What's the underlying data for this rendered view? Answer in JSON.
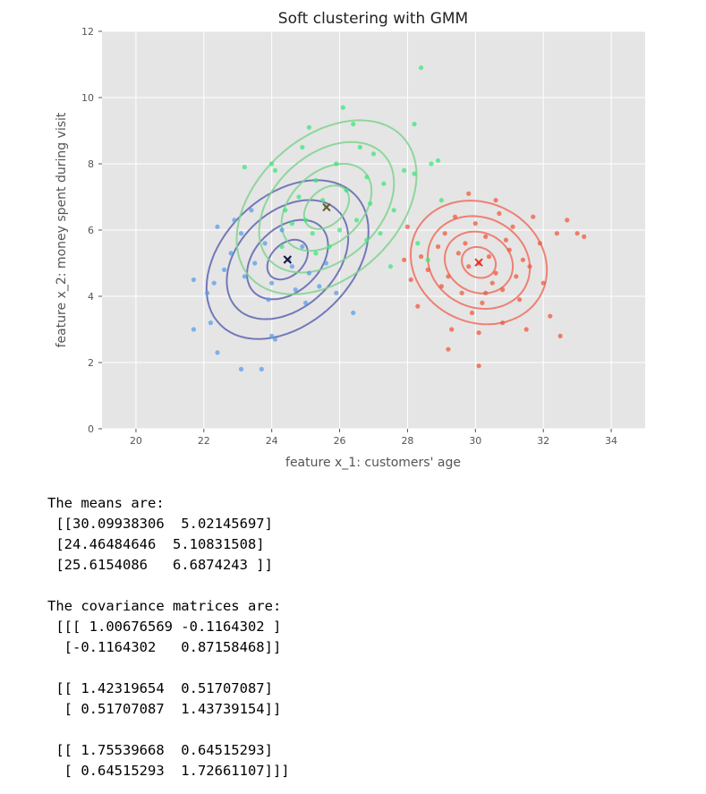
{
  "chart_data": {
    "type": "scatter",
    "title": "Soft clustering with GMM",
    "xlabel": "feature x_1: customers' age",
    "ylabel": "feature x_2: money spent during visit",
    "xlim": [
      19,
      35
    ],
    "ylim": [
      0,
      12
    ],
    "xticks": [
      "20",
      "22",
      "24",
      "26",
      "28",
      "30",
      "32",
      "34"
    ],
    "yticks": [
      "0",
      "2",
      "4",
      "6",
      "8",
      "10",
      "12"
    ],
    "grid": true,
    "components": [
      {
        "color": "#f05a3c",
        "ellipse_color": "#ee6f5f",
        "mean": [
          30.09938306,
          5.02145697
        ],
        "cov": [
          [
            1.00676569,
            -0.1164302
          ],
          [
            -0.1164302,
            0.87158468
          ]
        ],
        "center_marker": "#e8312a"
      },
      {
        "color": "#5a9ee8",
        "ellipse_color": "#5f65b0",
        "mean": [
          24.46484646,
          5.10831508
        ],
        "cov": [
          [
            1.42319654,
            0.51707087
          ],
          [
            0.51707087,
            1.43739154
          ]
        ],
        "center_marker": "#151540"
      },
      {
        "color": "#3de67a",
        "ellipse_color": "#7fd48e",
        "mean": [
          25.6154086,
          6.6874243
        ],
        "cov": [
          [
            1.75539668,
            0.64515293
          ],
          [
            0.64515293,
            1.72661107
          ]
        ],
        "center_marker": "#6a5a30"
      }
    ],
    "series": [
      {
        "points": [
          [
            30.1,
            5.0
          ],
          [
            29.5,
            5.3
          ],
          [
            30.6,
            4.7
          ],
          [
            31.0,
            5.4
          ],
          [
            29.2,
            4.6
          ],
          [
            30.3,
            5.8
          ],
          [
            30.8,
            4.2
          ],
          [
            29.8,
            4.9
          ],
          [
            31.4,
            5.1
          ],
          [
            28.9,
            5.5
          ],
          [
            30.0,
            6.2
          ],
          [
            29.6,
            4.1
          ],
          [
            31.2,
            4.6
          ],
          [
            30.4,
            5.2
          ],
          [
            29.1,
            5.9
          ],
          [
            30.9,
            5.7
          ],
          [
            31.6,
            4.9
          ],
          [
            28.6,
            4.8
          ],
          [
            30.2,
            3.8
          ],
          [
            29.4,
            6.4
          ],
          [
            31.9,
            5.6
          ],
          [
            28.4,
            5.2
          ],
          [
            30.7,
            6.5
          ],
          [
            29.9,
            3.5
          ],
          [
            31.3,
            3.9
          ],
          [
            32.0,
            4.4
          ],
          [
            28.1,
            4.5
          ],
          [
            30.5,
            4.4
          ],
          [
            29.7,
            5.6
          ],
          [
            31.1,
            6.1
          ],
          [
            30.1,
            2.9
          ],
          [
            29.3,
            3.0
          ],
          [
            32.4,
            5.9
          ],
          [
            28.0,
            6.1
          ],
          [
            30.8,
            3.2
          ],
          [
            31.7,
            6.4
          ],
          [
            28.3,
            3.7
          ],
          [
            29.0,
            4.3
          ],
          [
            32.2,
            3.4
          ],
          [
            30.6,
            6.9
          ],
          [
            33.2,
            5.8
          ],
          [
            32.5,
            2.8
          ],
          [
            30.1,
            1.9
          ],
          [
            32.7,
            6.3
          ],
          [
            29.2,
            2.4
          ],
          [
            31.5,
            3.0
          ],
          [
            27.9,
            5.1
          ],
          [
            33.0,
            5.9
          ],
          [
            29.8,
            7.1
          ],
          [
            30.3,
            4.1
          ]
        ]
      },
      {
        "points": [
          [
            24.5,
            5.1
          ],
          [
            23.8,
            5.6
          ],
          [
            25.1,
            4.7
          ],
          [
            24.0,
            4.4
          ],
          [
            23.5,
            5.0
          ],
          [
            24.9,
            5.5
          ],
          [
            25.6,
            5.0
          ],
          [
            23.2,
            4.6
          ],
          [
            24.3,
            6.0
          ],
          [
            22.8,
            5.3
          ],
          [
            25.4,
            4.3
          ],
          [
            23.9,
            3.9
          ],
          [
            24.7,
            4.2
          ],
          [
            22.6,
            4.8
          ],
          [
            23.1,
            5.9
          ],
          [
            22.3,
            4.4
          ],
          [
            21.7,
            4.5
          ],
          [
            22.1,
            4.1
          ],
          [
            21.7,
            3.0
          ],
          [
            22.2,
            3.2
          ],
          [
            22.4,
            2.3
          ],
          [
            23.1,
            1.8
          ],
          [
            23.7,
            1.8
          ],
          [
            24.0,
            2.8
          ],
          [
            24.1,
            2.7
          ],
          [
            22.4,
            6.1
          ],
          [
            22.9,
            6.3
          ],
          [
            23.4,
            6.6
          ],
          [
            25.9,
            4.1
          ],
          [
            26.4,
            3.5
          ],
          [
            25.0,
            3.8
          ],
          [
            24.6,
            4.9
          ]
        ]
      },
      {
        "points": [
          [
            25.6,
            6.7
          ],
          [
            26.2,
            7.2
          ],
          [
            25.0,
            6.3
          ],
          [
            26.8,
            7.6
          ],
          [
            24.8,
            7.0
          ],
          [
            26.5,
            6.3
          ],
          [
            25.9,
            8.0
          ],
          [
            27.3,
            7.4
          ],
          [
            24.4,
            6.6
          ],
          [
            26.0,
            6.0
          ],
          [
            25.3,
            7.5
          ],
          [
            27.0,
            8.3
          ],
          [
            24.1,
            7.8
          ],
          [
            26.9,
            6.8
          ],
          [
            25.2,
            5.9
          ],
          [
            27.6,
            6.6
          ],
          [
            25.7,
            5.5
          ],
          [
            24.9,
            8.5
          ],
          [
            26.4,
            9.2
          ],
          [
            27.9,
            7.8
          ],
          [
            26.1,
            9.7
          ],
          [
            25.1,
            9.1
          ],
          [
            28.2,
            9.2
          ],
          [
            28.4,
            10.9
          ],
          [
            28.9,
            8.1
          ],
          [
            28.7,
            8.0
          ],
          [
            28.2,
            7.7
          ],
          [
            28.6,
            5.1
          ],
          [
            28.3,
            5.6
          ],
          [
            29.0,
            6.9
          ],
          [
            27.5,
            4.9
          ],
          [
            23.2,
            7.9
          ],
          [
            24.0,
            8.0
          ],
          [
            25.3,
            5.3
          ],
          [
            26.8,
            5.7
          ],
          [
            24.6,
            6.2
          ],
          [
            25.5,
            6.9
          ],
          [
            27.2,
            5.9
          ],
          [
            24.3,
            5.5
          ],
          [
            26.6,
            8.5
          ]
        ]
      }
    ]
  },
  "output": {
    "lines": [
      "The means are:",
      " [[30.09938306  5.02145697]",
      " [24.46484646  5.10831508]",
      " [25.6154086   6.6874243 ]]",
      "",
      "The covariance matrices are:",
      " [[[ 1.00676569 -0.1164302 ]",
      "  [-0.1164302   0.87158468]]",
      "",
      " [[ 1.42319654  0.51707087]",
      "  [ 0.51707087  1.43739154]]",
      "",
      " [[ 1.75539668  0.64515293]",
      "  [ 0.64515293  1.72661107]]]"
    ]
  }
}
